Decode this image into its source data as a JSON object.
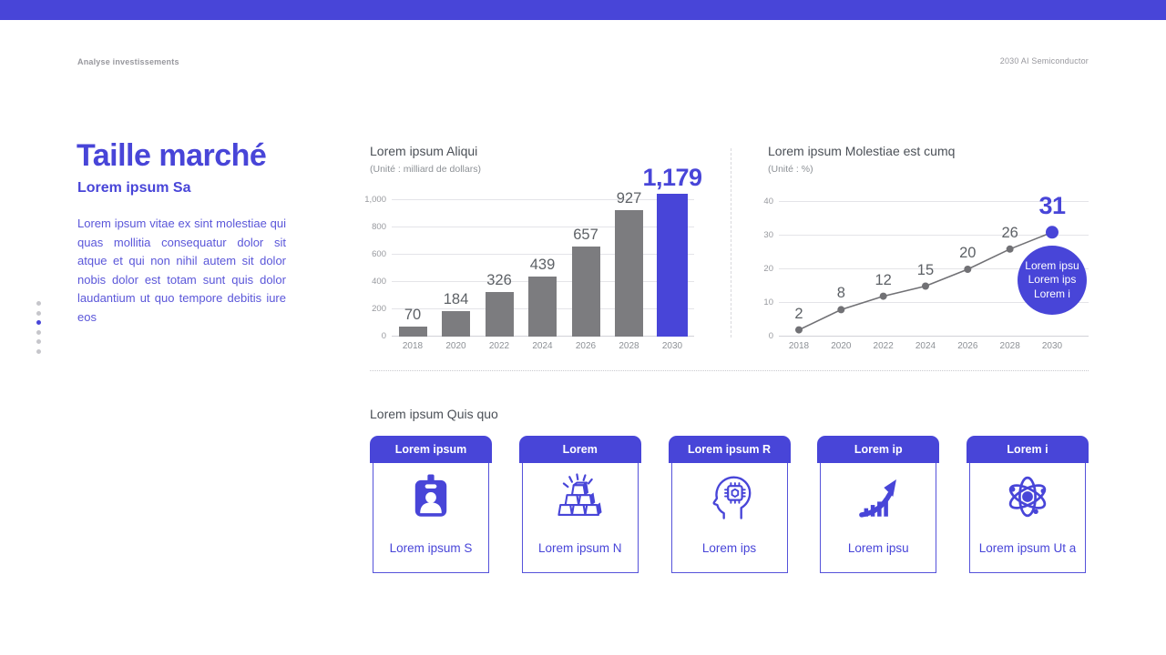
{
  "header": {
    "left_label": "Analyse investissements",
    "right_label": "2030 AI Semiconductor"
  },
  "colors": {
    "accent": "#4845D8",
    "bar_gray": "#7C7C7F",
    "line_gray": "#717175"
  },
  "intro": {
    "title": "Taille marché",
    "subtitle": "Lorem ipsum Sa",
    "body": "Lorem ipsum vitae ex sint molestiae qui quas mollitia consequatur dolor sit atque et qui non nihil autem sit dolor nobis dolor est totam sunt quis dolor laudantium ut quo tempore debitis iure eos"
  },
  "slide_nav": {
    "count": 6,
    "active_index": 2
  },
  "chart_data": [
    {
      "type": "bar",
      "title": "Lorem ipsum Aliqui",
      "unit": "(Unité : milliard de dollars)",
      "x": [
        "2018",
        "2020",
        "2022",
        "2024",
        "2026",
        "2028",
        "2030"
      ],
      "values": [
        70,
        184,
        326,
        439,
        657,
        927,
        1179
      ],
      "values_display": [
        "70",
        "184",
        "326",
        "439",
        "657",
        "927",
        "1,179"
      ],
      "highlight_index": 6,
      "yticks": [
        "0",
        "200",
        "400",
        "600",
        "800",
        "1,000"
      ],
      "ylim": [
        0,
        1000
      ],
      "grid": true,
      "xlabel": "",
      "ylabel": ""
    },
    {
      "type": "line",
      "title": "Lorem ipsum Molestiae est cumq",
      "unit": "(Unité : %)",
      "x": [
        "2018",
        "2020",
        "2022",
        "2024",
        "2026",
        "2028",
        "2030"
      ],
      "values": [
        2,
        8,
        12,
        15,
        20,
        26,
        31
      ],
      "values_display": [
        "2",
        "8",
        "12",
        "15",
        "20",
        "26",
        "31"
      ],
      "highlight_index": 6,
      "highlight_badge_lines": [
        "Lorem ipsu",
        "Lorem ips",
        "Lorem i"
      ],
      "yticks": [
        "0",
        "10",
        "20",
        "30",
        "40"
      ],
      "ylim": [
        0,
        40
      ],
      "grid": true,
      "xlabel": "",
      "ylabel": ""
    }
  ],
  "bottom": {
    "label": "Lorem ipsum Quis quo",
    "cards": [
      {
        "header": "Lorem ipsum",
        "icon": "id-badge-icon",
        "caption": "Lorem ipsum S"
      },
      {
        "header": "Lorem",
        "icon": "gold-bars-icon",
        "caption": "Lorem ipsum N"
      },
      {
        "header": "Lorem ipsum R",
        "icon": "ai-head-icon",
        "caption": "Lorem ips"
      },
      {
        "header": "Lorem ip",
        "icon": "growth-arrow-icon",
        "caption": "Lorem ipsu"
      },
      {
        "header": "Lorem i",
        "icon": "atom-icon",
        "caption": "Lorem ipsum Ut a"
      }
    ]
  }
}
